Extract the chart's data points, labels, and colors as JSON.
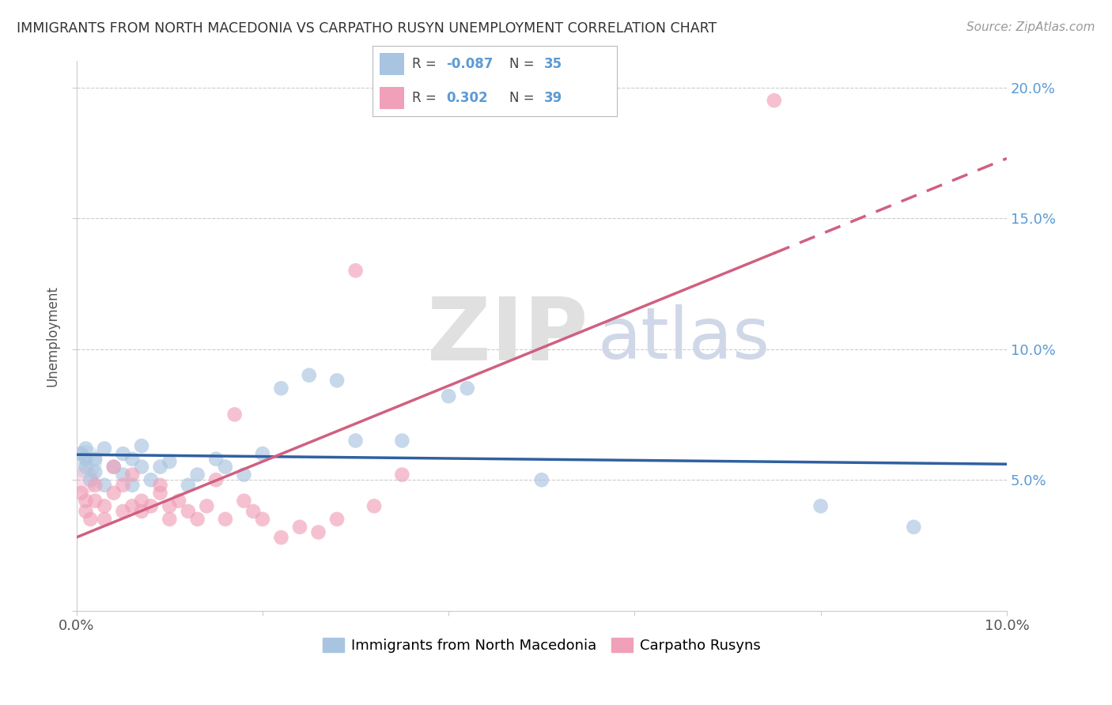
{
  "title": "IMMIGRANTS FROM NORTH MACEDONIA VS CARPATHO RUSYN UNEMPLOYMENT CORRELATION CHART",
  "source": "Source: ZipAtlas.com",
  "ylabel": "Unemployment",
  "legend_label_blue": "Immigrants from North Macedonia",
  "legend_label_pink": "Carpatho Rusyns",
  "legend_blue_r_val": "-0.087",
  "legend_blue_n": "35",
  "legend_pink_r_val": "0.302",
  "legend_pink_n": "39",
  "xlim": [
    0.0,
    0.1
  ],
  "ylim": [
    0.0,
    0.21
  ],
  "xtick_vals": [
    0.0,
    0.02,
    0.04,
    0.06,
    0.08,
    0.1
  ],
  "ytick_vals": [
    0.0,
    0.05,
    0.1,
    0.15,
    0.2
  ],
  "color_blue": "#a8c4e0",
  "color_pink": "#f0a0b8",
  "color_blue_line": "#3060a0",
  "color_pink_line": "#d06080",
  "background": "#ffffff",
  "blue_x": [
    0.0005,
    0.001,
    0.001,
    0.001,
    0.0015,
    0.002,
    0.002,
    0.003,
    0.003,
    0.004,
    0.005,
    0.005,
    0.006,
    0.006,
    0.007,
    0.007,
    0.008,
    0.009,
    0.01,
    0.012,
    0.013,
    0.015,
    0.016,
    0.018,
    0.02,
    0.022,
    0.025,
    0.028,
    0.03,
    0.035,
    0.04,
    0.042,
    0.05,
    0.08,
    0.09
  ],
  "blue_y": [
    0.06,
    0.055,
    0.058,
    0.062,
    0.05,
    0.058,
    0.053,
    0.062,
    0.048,
    0.055,
    0.052,
    0.06,
    0.058,
    0.048,
    0.055,
    0.063,
    0.05,
    0.055,
    0.057,
    0.048,
    0.052,
    0.058,
    0.055,
    0.052,
    0.06,
    0.085,
    0.09,
    0.088,
    0.065,
    0.065,
    0.082,
    0.085,
    0.05,
    0.04,
    0.032
  ],
  "pink_x": [
    0.0005,
    0.001,
    0.001,
    0.0015,
    0.002,
    0.002,
    0.003,
    0.003,
    0.004,
    0.004,
    0.005,
    0.005,
    0.006,
    0.006,
    0.007,
    0.007,
    0.008,
    0.009,
    0.009,
    0.01,
    0.01,
    0.011,
    0.012,
    0.013,
    0.014,
    0.015,
    0.016,
    0.017,
    0.018,
    0.019,
    0.02,
    0.022,
    0.024,
    0.026,
    0.028,
    0.03,
    0.032,
    0.035,
    0.075
  ],
  "pink_y": [
    0.045,
    0.038,
    0.042,
    0.035,
    0.042,
    0.048,
    0.04,
    0.035,
    0.045,
    0.055,
    0.038,
    0.048,
    0.052,
    0.04,
    0.038,
    0.042,
    0.04,
    0.048,
    0.045,
    0.04,
    0.035,
    0.042,
    0.038,
    0.035,
    0.04,
    0.05,
    0.035,
    0.075,
    0.042,
    0.038,
    0.035,
    0.028,
    0.032,
    0.03,
    0.035,
    0.13,
    0.04,
    0.052,
    0.195
  ]
}
